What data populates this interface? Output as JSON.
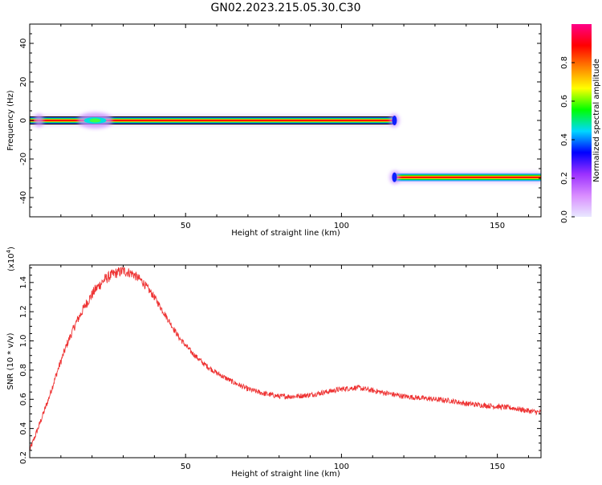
{
  "title": "GN02.2023.215.05.30.C30",
  "chart_data": [
    {
      "type": "heatmap",
      "xlabel": "Height of straight line (km)",
      "ylabel": "Frequency (Hz)",
      "xlim": [
        0,
        164
      ],
      "ylim": [
        -50,
        50
      ],
      "x_ticks": [
        50,
        100,
        150
      ],
      "y_ticks": [
        -40,
        -20,
        0,
        20,
        40
      ],
      "segments": [
        {
          "x_start": 0,
          "x_end": 117,
          "frequency": 0
        },
        {
          "x_start": 117,
          "x_end": 164,
          "frequency": -29.5
        }
      ],
      "blobs": [
        {
          "x": 3,
          "frequency": 0
        },
        {
          "x": 21,
          "frequency": 0
        },
        {
          "x": 117,
          "frequency": 0
        },
        {
          "x": 117,
          "frequency": -29.5
        }
      ],
      "colorbar": {
        "label": "Normalized spectral amplitude",
        "range": [
          0,
          1
        ],
        "ticks": [
          "0.0",
          "0.2",
          "0.4",
          "0.6",
          "0.8"
        ],
        "colors": [
          "#e8e8ff",
          "#d98cff",
          "#9b30ff",
          "#0000ff",
          "#00d8ff",
          "#00ff00",
          "#ffff00",
          "#ff8000",
          "#ff0000",
          "#ff0088"
        ]
      }
    },
    {
      "type": "line",
      "xlabel": "Height of straight line (km)",
      "ylabel": "SNR (10 * v/v)",
      "y_scale_label": "(x10",
      "y_scale_exp": "4",
      "xlim": [
        0,
        164
      ],
      "ylim": [
        0.2,
        1.52
      ],
      "x_ticks": [
        50,
        100,
        150
      ],
      "y_ticks": [
        "0.2",
        "0.4",
        "0.6",
        "0.8",
        "1.0",
        "1.2",
        "1.4"
      ],
      "color": "#ee3333",
      "series": [
        {
          "x": [
            0,
            3,
            6,
            9,
            12,
            15,
            18,
            21,
            24,
            27,
            30,
            33,
            36,
            40,
            44,
            48,
            52,
            56,
            60,
            65,
            70,
            75,
            80,
            85,
            90,
            95,
            100,
            105,
            110,
            115,
            120,
            125,
            130,
            135,
            140,
            145,
            150,
            155,
            160,
            164
          ],
          "values": [
            0.25,
            0.42,
            0.6,
            0.8,
            0.98,
            1.13,
            1.25,
            1.35,
            1.42,
            1.46,
            1.48,
            1.46,
            1.41,
            1.3,
            1.16,
            1.02,
            0.92,
            0.84,
            0.78,
            0.72,
            0.67,
            0.64,
            0.62,
            0.62,
            0.63,
            0.65,
            0.67,
            0.68,
            0.66,
            0.64,
            0.62,
            0.61,
            0.6,
            0.59,
            0.57,
            0.56,
            0.55,
            0.54,
            0.52,
            0.51
          ]
        }
      ]
    }
  ]
}
